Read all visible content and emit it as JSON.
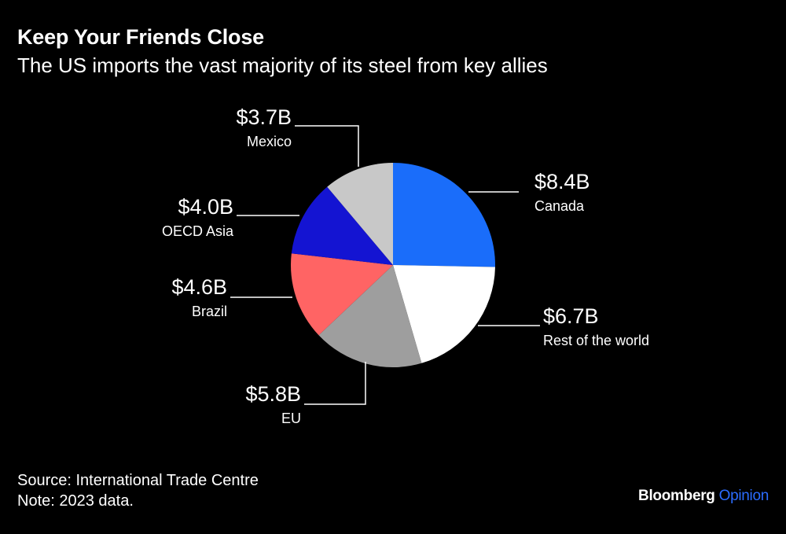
{
  "header": {
    "title": "Keep Your Friends Close",
    "subtitle": "The US imports the vast majority of its steel from key allies"
  },
  "chart_data": {
    "type": "pie",
    "title": "Keep Your Friends Close",
    "subtitle": "The US imports the vast majority of its steel from key allies",
    "unit": "USD billions",
    "start": "12 o'clock",
    "direction": "clockwise",
    "slices": [
      {
        "name": "Canada",
        "value": 8.4,
        "label": "$8.4B",
        "color": "#1a6dfa"
      },
      {
        "name": "Rest of the world",
        "value": 6.7,
        "label": "$6.7B",
        "color": "#ffffff"
      },
      {
        "name": "EU",
        "value": 5.8,
        "label": "$5.8B",
        "color": "#9e9e9e"
      },
      {
        "name": "Brazil",
        "value": 4.6,
        "label": "$4.6B",
        "color": "#ff6464"
      },
      {
        "name": "OECD Asia",
        "value": 4.0,
        "label": "$4.0B",
        "color": "#1414d2"
      },
      {
        "name": "Mexico",
        "value": 3.7,
        "label": "$3.7B",
        "color": "#c8c8c8"
      }
    ]
  },
  "footer": {
    "source": "Source: International Trade Centre",
    "note": "Note: 2023 data."
  },
  "brand": {
    "name": "Bloomberg",
    "section": "Opinion"
  }
}
